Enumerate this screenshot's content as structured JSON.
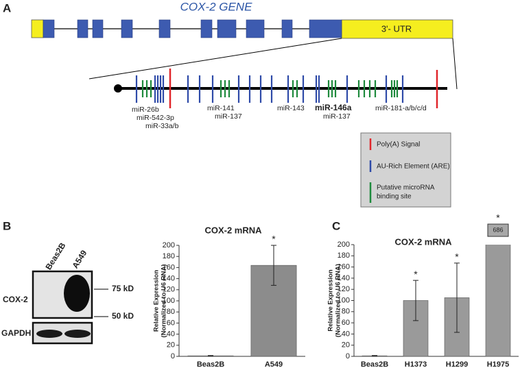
{
  "figure": {
    "panels": [
      "A",
      "B",
      "C"
    ]
  },
  "diagram": {
    "title": "COX-2 GENE",
    "utr": "3'- UTR",
    "mirs": [
      "miR-26b",
      "miR-542-3p",
      "miR-33a/b",
      "miR-141",
      "miR-137",
      "miR-143",
      "miR-146a",
      "miR-137",
      "miR-181-a/b/c/d"
    ],
    "legend": [
      "Poly(A) Signal",
      "AU-Rich Element (ARE)",
      "Putative microRNA",
      "binding site"
    ]
  },
  "blot": {
    "lanes": [
      "Beas2B",
      "A549"
    ],
    "rows": [
      "COX-2",
      "GAPDH"
    ],
    "markers": [
      "75 kD",
      "50 kD"
    ]
  },
  "chart_data": [
    {
      "type": "bar",
      "title": "COX-2 mRNA",
      "ylabel": [
        "Relative Expression",
        "(Normalized to U6 RNA)"
      ],
      "categories": [
        "Beas2B",
        "A549"
      ],
      "values": [
        1,
        164
      ],
      "errors": [
        0.5,
        36
      ],
      "markers": [
        null,
        "*"
      ],
      "color": "#8c8c8c",
      "ylim": [
        0,
        200
      ],
      "yticks": [
        0,
        20,
        40,
        60,
        80,
        100,
        120,
        140,
        160,
        180,
        200
      ]
    },
    {
      "type": "bar",
      "title": "COX-2 mRNA",
      "ylabel": [
        "Relative Expression",
        "(Normalized to U6 RNA)"
      ],
      "categories": [
        "Beas2B",
        "H1373",
        "H1299",
        "H1975"
      ],
      "values": [
        1,
        100,
        105,
        686
      ],
      "errors": [
        0.5,
        36,
        62,
        null
      ],
      "value_labels": [
        null,
        null,
        null,
        "686"
      ],
      "markers": [
        null,
        "*",
        "*",
        "*"
      ],
      "color": "#9a9a9a",
      "ylim": [
        0,
        200
      ],
      "yticks": [
        0,
        20,
        40,
        60,
        80,
        100,
        120,
        140,
        160,
        180,
        200
      ]
    }
  ]
}
